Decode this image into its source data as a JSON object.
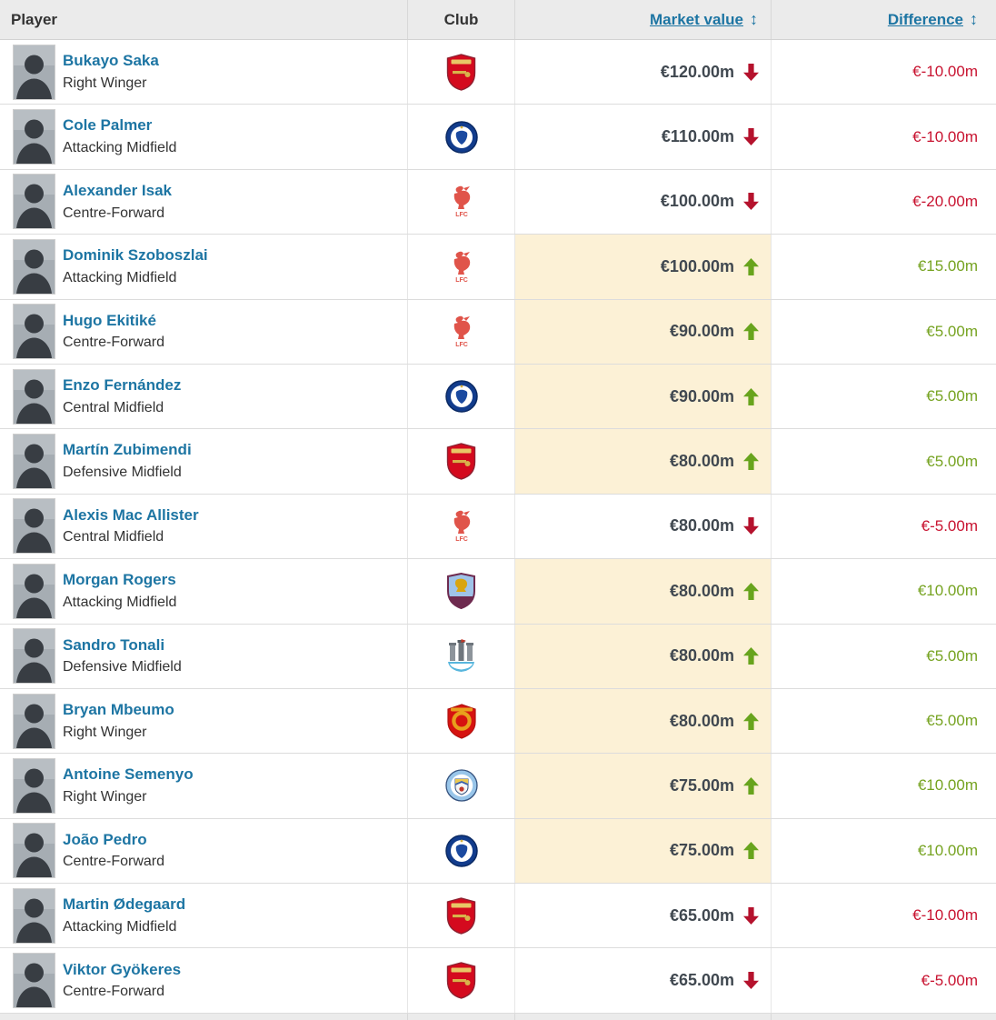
{
  "colors": {
    "link_blue": "#1d75a3",
    "header_bg": "#ebebeb",
    "highlight_yellow": "#fcf1d6",
    "increase_green": "#76a321",
    "decrease_red": "#c81330",
    "value_text": "#404850"
  },
  "table": {
    "columns": [
      {
        "label": "Player",
        "sortable": false
      },
      {
        "label": "Club",
        "sortable": false
      },
      {
        "label": "Market value",
        "sortable": true
      },
      {
        "label": "Difference",
        "sortable": true
      }
    ],
    "sort_icon": "↕",
    "rows": [
      {
        "name": "Bukayo Saka",
        "position": "Right Winger",
        "club": "Arsenal FC",
        "club_key": "arsenal",
        "market_value": "€120.00m",
        "trend": "down",
        "difference": "€-10.00m",
        "highlight": false
      },
      {
        "name": "Cole Palmer",
        "position": "Attacking Midfield",
        "club": "Chelsea FC",
        "club_key": "chelsea",
        "market_value": "€110.00m",
        "trend": "down",
        "difference": "€-10.00m",
        "highlight": false
      },
      {
        "name": "Alexander Isak",
        "position": "Centre-Forward",
        "club": "Liverpool FC",
        "club_key": "liverpool",
        "market_value": "€100.00m",
        "trend": "down",
        "difference": "€-20.00m",
        "highlight": false
      },
      {
        "name": "Dominik Szoboszlai",
        "position": "Attacking Midfield",
        "club": "Liverpool FC",
        "club_key": "liverpool",
        "market_value": "€100.00m",
        "trend": "up",
        "difference": "€15.00m",
        "highlight": true
      },
      {
        "name": "Hugo Ekitiké",
        "position": "Centre-Forward",
        "club": "Liverpool FC",
        "club_key": "liverpool",
        "market_value": "€90.00m",
        "trend": "up",
        "difference": "€5.00m",
        "highlight": true
      },
      {
        "name": "Enzo Fernández",
        "position": "Central Midfield",
        "club": "Chelsea FC",
        "club_key": "chelsea",
        "market_value": "€90.00m",
        "trend": "up",
        "difference": "€5.00m",
        "highlight": true
      },
      {
        "name": "Martín Zubimendi",
        "position": "Defensive Midfield",
        "club": "Arsenal FC",
        "club_key": "arsenal",
        "market_value": "€80.00m",
        "trend": "up",
        "difference": "€5.00m",
        "highlight": true
      },
      {
        "name": "Alexis Mac Allister",
        "position": "Central Midfield",
        "club": "Liverpool FC",
        "club_key": "liverpool",
        "market_value": "€80.00m",
        "trend": "down",
        "difference": "€-5.00m",
        "highlight": false
      },
      {
        "name": "Morgan Rogers",
        "position": "Attacking Midfield",
        "club": "Aston Villa",
        "club_key": "aston_villa",
        "market_value": "€80.00m",
        "trend": "up",
        "difference": "€10.00m",
        "highlight": true
      },
      {
        "name": "Sandro Tonali",
        "position": "Defensive Midfield",
        "club": "Newcastle United",
        "club_key": "newcastle",
        "market_value": "€80.00m",
        "trend": "up",
        "difference": "€5.00m",
        "highlight": true
      },
      {
        "name": "Bryan Mbeumo",
        "position": "Right Winger",
        "club": "Manchester United",
        "club_key": "man_united",
        "market_value": "€80.00m",
        "trend": "up",
        "difference": "€5.00m",
        "highlight": true
      },
      {
        "name": "Antoine Semenyo",
        "position": "Right Winger",
        "club": "Manchester City",
        "club_key": "man_city",
        "market_value": "€75.00m",
        "trend": "up",
        "difference": "€10.00m",
        "highlight": true
      },
      {
        "name": "João Pedro",
        "position": "Centre-Forward",
        "club": "Chelsea FC",
        "club_key": "chelsea",
        "market_value": "€75.00m",
        "trend": "up",
        "difference": "€10.00m",
        "highlight": true
      },
      {
        "name": "Martin Ødegaard",
        "position": "Attacking Midfield",
        "club": "Arsenal FC",
        "club_key": "arsenal",
        "market_value": "€65.00m",
        "trend": "down",
        "difference": "€-10.00m",
        "highlight": false
      },
      {
        "name": "Viktor Gyökeres",
        "position": "Centre-Forward",
        "club": "Arsenal FC",
        "club_key": "arsenal",
        "market_value": "€65.00m",
        "trend": "down",
        "difference": "€-5.00m",
        "highlight": false
      }
    ]
  }
}
